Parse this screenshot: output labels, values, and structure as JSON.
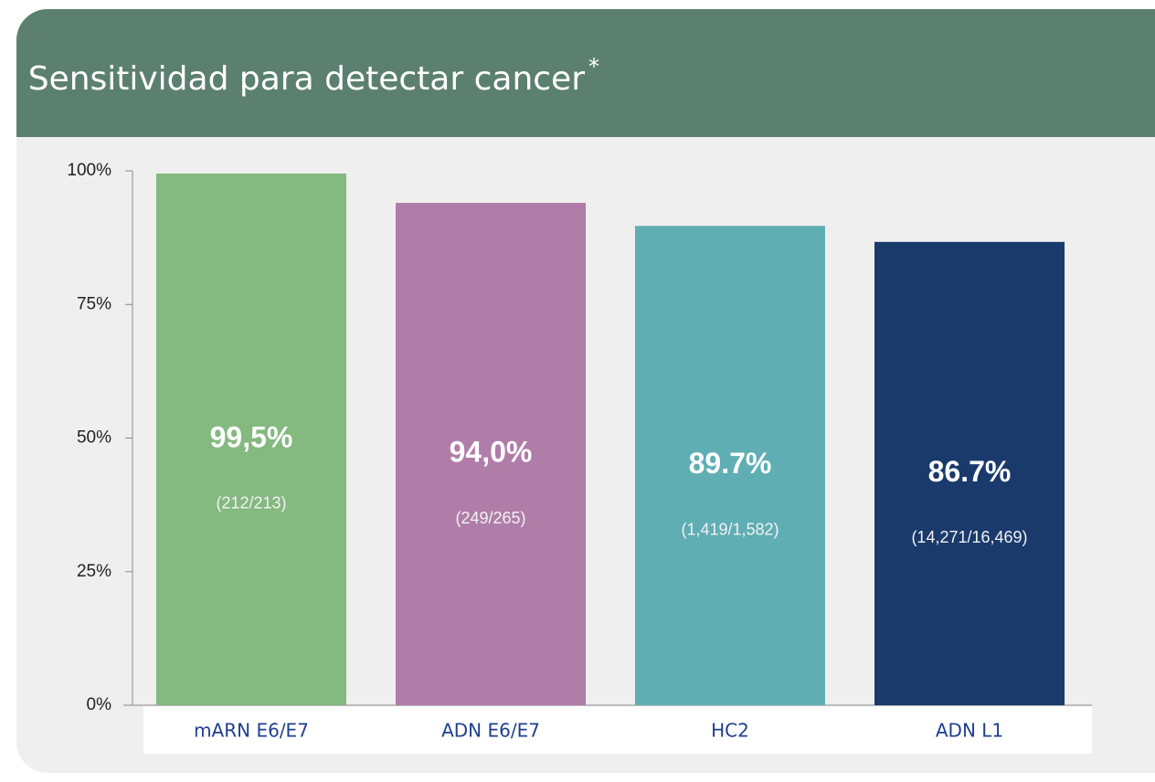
{
  "chart_data": {
    "type": "bar",
    "title": "Sensitividad para detectar cancer",
    "title_superscript": "*",
    "categories": [
      "mARN E6/E7",
      "ADN E6/E7",
      "HC2",
      "ADN L1"
    ],
    "values": [
      99.5,
      94.0,
      89.7,
      86.7
    ],
    "value_labels": [
      "99,5%",
      "94,0%",
      "89.7%",
      "86.7%"
    ],
    "fraction_labels": [
      "(212/213)",
      "(249/265)",
      "(1,419/1,582)",
      "(14,271/16,469)"
    ],
    "colors": [
      "#84b97f",
      "#b07ca8",
      "#5faeb4",
      "#1a3a6c"
    ],
    "ylim": [
      0,
      100
    ],
    "yticks": [
      {
        "value": 0,
        "label": "0%"
      },
      {
        "value": 25,
        "label": "25%"
      },
      {
        "value": 50,
        "label": "50%"
      },
      {
        "value": 75,
        "label": "75%"
      },
      {
        "value": 100,
        "label": "100%"
      }
    ]
  }
}
